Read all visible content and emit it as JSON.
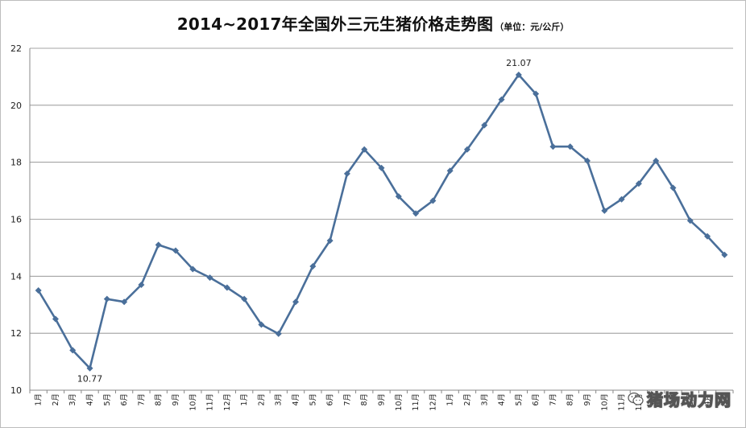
{
  "chart_title": {
    "main": "2014~2017年全国外三元生猪价格走势图",
    "unit": "（单位：元/公斤）"
  },
  "watermark": {
    "text": "猪场动力网",
    "icon": "wechat-icon"
  },
  "colors": {
    "line": "#4A6F9A",
    "grid": "#888888",
    "axis": "#888888"
  },
  "chart_data": {
    "type": "line",
    "title": "2014~2017年全国外三元生猪价格走势图",
    "subtitle": "（单位：元/公斤）",
    "xlabel": "",
    "ylabel": "",
    "ylim": [
      10,
      22
    ],
    "yticks": [
      10,
      12,
      14,
      16,
      18,
      20,
      22
    ],
    "grid": true,
    "legend": "none",
    "categories": [
      "1月",
      "2月",
      "3月",
      "4月",
      "5月",
      "6月",
      "7月",
      "8月",
      "9月",
      "10月",
      "11月",
      "12月",
      "1月",
      "2月",
      "3月",
      "4月",
      "5月",
      "6月",
      "7月",
      "8月",
      "9月",
      "10月",
      "11月",
      "12月",
      "1月",
      "2月",
      "3月",
      "4月",
      "5月",
      "6月",
      "7月",
      "8月",
      "9月",
      "10月",
      "11月",
      "12月",
      "1月",
      "2月",
      "3月",
      "4月",
      "5月"
    ],
    "series": [
      {
        "values": [
          13.5,
          12.5,
          11.4,
          10.77,
          13.2,
          13.1,
          13.7,
          15.1,
          14.9,
          14.25,
          13.95,
          13.6,
          13.2,
          12.3,
          11.98,
          13.1,
          14.35,
          15.25,
          17.6,
          18.45,
          17.8,
          16.8,
          16.2,
          16.65,
          17.7,
          18.45,
          19.3,
          20.2,
          21.07,
          20.4,
          18.55,
          18.55,
          18.05,
          16.3,
          16.7,
          17.25,
          18.05,
          17.1,
          15.95,
          15.4,
          14.75
        ]
      }
    ],
    "data_labels": [
      {
        "index": 3,
        "text": "10.77",
        "position": "below"
      },
      {
        "index": 28,
        "text": "21.07",
        "position": "above"
      }
    ]
  }
}
